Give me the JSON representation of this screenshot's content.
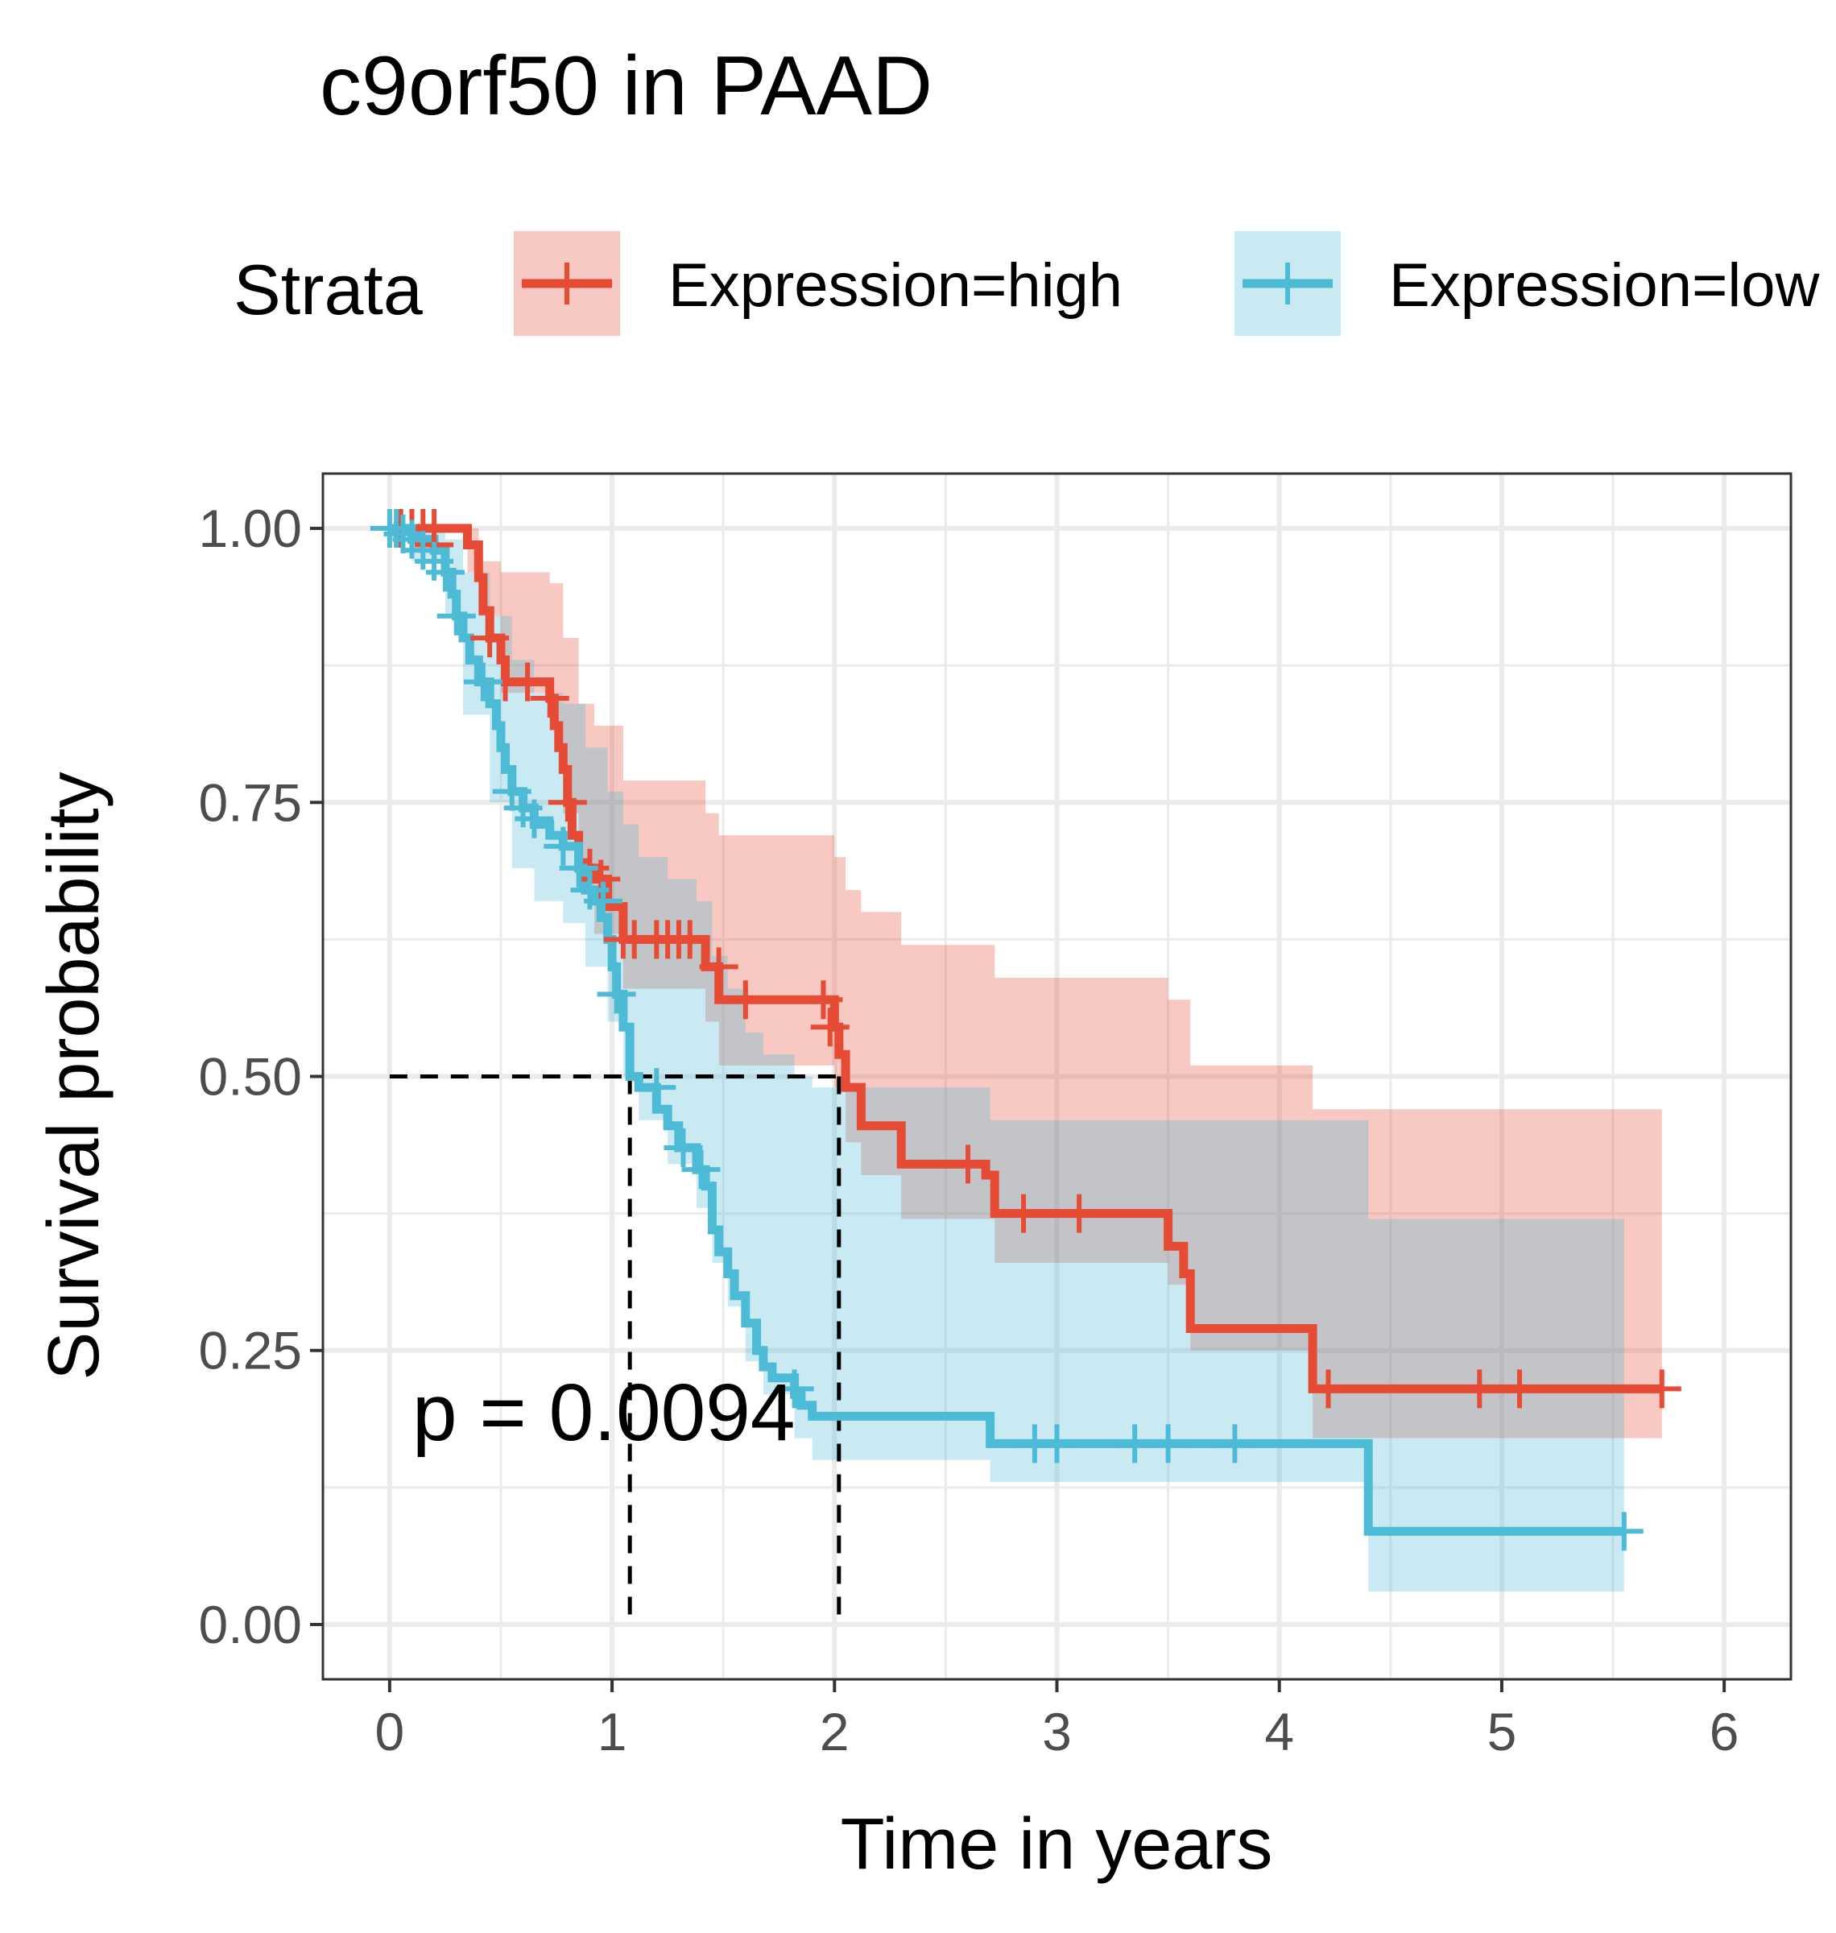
{
  "chart_data": {
    "type": "line",
    "title": "c9orf50 in PAAD",
    "xlabel": "Time in years",
    "ylabel": "Survival probability",
    "xlim": [
      -0.3,
      6.3
    ],
    "ylim": [
      -0.05,
      1.05
    ],
    "x_ticks": [
      "0",
      "1",
      "2",
      "3",
      "4",
      "5",
      "6"
    ],
    "y_ticks": [
      "0.00",
      "0.25",
      "0.50",
      "0.75",
      "1.00"
    ],
    "grid": true,
    "legend_title": "Strata",
    "legend_placement": "top",
    "annotation": "p = 0.0094",
    "median_lines": {
      "y": 0.5,
      "x": [
        1.08,
        2.02
      ]
    },
    "series": [
      {
        "name": "Expression=high",
        "color": "#E64B35",
        "steps": [
          [
            0,
            1.0
          ],
          [
            0.35,
            0.985
          ],
          [
            0.4,
            0.955
          ],
          [
            0.42,
            0.925
          ],
          [
            0.45,
            0.9
          ],
          [
            0.5,
            0.88
          ],
          [
            0.52,
            0.86
          ],
          [
            0.72,
            0.845
          ],
          [
            0.74,
            0.82
          ],
          [
            0.76,
            0.8
          ],
          [
            0.78,
            0.78
          ],
          [
            0.8,
            0.75
          ],
          [
            0.82,
            0.72
          ],
          [
            0.85,
            0.695
          ],
          [
            0.88,
            0.69
          ],
          [
            0.92,
            0.68
          ],
          [
            0.98,
            0.655
          ],
          [
            1.05,
            0.625
          ],
          [
            1.42,
            0.6
          ],
          [
            1.48,
            0.57
          ],
          [
            2.0,
            0.545
          ],
          [
            2.02,
            0.52
          ],
          [
            2.05,
            0.49
          ],
          [
            2.12,
            0.455
          ],
          [
            2.3,
            0.42
          ],
          [
            2.68,
            0.41
          ],
          [
            2.72,
            0.375
          ],
          [
            3.5,
            0.345
          ],
          [
            3.57,
            0.32
          ],
          [
            3.6,
            0.27
          ],
          [
            4.15,
            0.215
          ],
          [
            5.72,
            0.215
          ]
        ],
        "ci": [
          [
            0,
            1.0,
            1.0
          ],
          [
            0.35,
            1.0,
            0.96
          ],
          [
            0.4,
            0.97,
            0.92
          ],
          [
            0.5,
            0.96,
            0.85
          ],
          [
            0.72,
            0.95,
            0.82
          ],
          [
            0.78,
            0.9,
            0.74
          ],
          [
            0.85,
            0.84,
            0.67
          ],
          [
            0.92,
            0.82,
            0.63
          ],
          [
            1.05,
            0.77,
            0.58
          ],
          [
            1.42,
            0.74,
            0.55
          ],
          [
            1.48,
            0.72,
            0.51
          ],
          [
            2.0,
            0.7,
            0.49
          ],
          [
            2.05,
            0.67,
            0.44
          ],
          [
            2.12,
            0.65,
            0.41
          ],
          [
            2.3,
            0.62,
            0.37
          ],
          [
            2.72,
            0.59,
            0.33
          ],
          [
            3.5,
            0.57,
            0.31
          ],
          [
            3.6,
            0.51,
            0.25
          ],
          [
            4.15,
            0.47,
            0.17
          ],
          [
            5.72,
            0.47,
            0.1
          ]
        ],
        "censor": [
          [
            0.05,
            1.0
          ],
          [
            0.1,
            1.0
          ],
          [
            0.15,
            1.0
          ],
          [
            0.2,
            1.0
          ],
          [
            0.2,
            0.985
          ],
          [
            0.45,
            0.9
          ],
          [
            0.52,
            0.86
          ],
          [
            0.62,
            0.86
          ],
          [
            0.72,
            0.845
          ],
          [
            0.8,
            0.75
          ],
          [
            0.9,
            0.69
          ],
          [
            0.95,
            0.68
          ],
          [
            1.05,
            0.625
          ],
          [
            1.1,
            0.625
          ],
          [
            1.2,
            0.625
          ],
          [
            1.25,
            0.625
          ],
          [
            1.3,
            0.625
          ],
          [
            1.35,
            0.625
          ],
          [
            1.48,
            0.6
          ],
          [
            1.6,
            0.57
          ],
          [
            1.95,
            0.57
          ],
          [
            1.98,
            0.545
          ],
          [
            2.6,
            0.42
          ],
          [
            2.85,
            0.375
          ],
          [
            3.1,
            0.375
          ],
          [
            4.22,
            0.215
          ],
          [
            4.9,
            0.215
          ],
          [
            5.08,
            0.215
          ],
          [
            5.72,
            0.215
          ]
        ]
      },
      {
        "name": "Expression=low",
        "color": "#4DBBD5",
        "steps": [
          [
            0,
            1.0
          ],
          [
            0.1,
            0.99
          ],
          [
            0.2,
            0.98
          ],
          [
            0.25,
            0.96
          ],
          [
            0.28,
            0.94
          ],
          [
            0.3,
            0.92
          ],
          [
            0.33,
            0.9
          ],
          [
            0.36,
            0.88
          ],
          [
            0.4,
            0.86
          ],
          [
            0.45,
            0.84
          ],
          [
            0.48,
            0.82
          ],
          [
            0.5,
            0.8
          ],
          [
            0.52,
            0.78
          ],
          [
            0.55,
            0.76
          ],
          [
            0.6,
            0.745
          ],
          [
            0.65,
            0.73
          ],
          [
            0.72,
            0.72
          ],
          [
            0.78,
            0.71
          ],
          [
            0.85,
            0.69
          ],
          [
            0.88,
            0.67
          ],
          [
            0.92,
            0.66
          ],
          [
            0.95,
            0.645
          ],
          [
            0.98,
            0.625
          ],
          [
            1.0,
            0.6
          ],
          [
            1.02,
            0.575
          ],
          [
            1.05,
            0.545
          ],
          [
            1.08,
            0.5
          ],
          [
            1.12,
            0.49
          ],
          [
            1.2,
            0.47
          ],
          [
            1.25,
            0.455
          ],
          [
            1.3,
            0.435
          ],
          [
            1.38,
            0.415
          ],
          [
            1.42,
            0.4
          ],
          [
            1.45,
            0.36
          ],
          [
            1.48,
            0.34
          ],
          [
            1.52,
            0.32
          ],
          [
            1.55,
            0.3
          ],
          [
            1.6,
            0.275
          ],
          [
            1.65,
            0.25
          ],
          [
            1.68,
            0.235
          ],
          [
            1.72,
            0.225
          ],
          [
            1.82,
            0.21
          ],
          [
            1.85,
            0.2
          ],
          [
            1.9,
            0.19
          ],
          [
            2.7,
            0.165
          ],
          [
            4.4,
            0.085
          ],
          [
            5.55,
            0.085
          ]
        ],
        "ci": [
          [
            0,
            1.0,
            1.0
          ],
          [
            0.1,
            1.0,
            0.97
          ],
          [
            0.25,
            0.99,
            0.92
          ],
          [
            0.33,
            0.96,
            0.83
          ],
          [
            0.45,
            0.92,
            0.75
          ],
          [
            0.55,
            0.88,
            0.69
          ],
          [
            0.65,
            0.85,
            0.66
          ],
          [
            0.78,
            0.84,
            0.64
          ],
          [
            0.88,
            0.8,
            0.6
          ],
          [
            0.98,
            0.76,
            0.55
          ],
          [
            1.05,
            0.73,
            0.5
          ],
          [
            1.12,
            0.7,
            0.46
          ],
          [
            1.25,
            0.68,
            0.42
          ],
          [
            1.38,
            0.66,
            0.38
          ],
          [
            1.45,
            0.61,
            0.33
          ],
          [
            1.52,
            0.58,
            0.29
          ],
          [
            1.6,
            0.54,
            0.24
          ],
          [
            1.68,
            0.52,
            0.21
          ],
          [
            1.82,
            0.5,
            0.17
          ],
          [
            1.9,
            0.49,
            0.15
          ],
          [
            2.7,
            0.46,
            0.13
          ],
          [
            4.4,
            0.37,
            0.03
          ],
          [
            5.55,
            0.37,
            0.03
          ]
        ],
        "censor": [
          [
            0.0,
            1.0
          ],
          [
            0.03,
            1.0
          ],
          [
            0.06,
            0.995
          ],
          [
            0.1,
            0.99
          ],
          [
            0.15,
            0.98
          ],
          [
            0.2,
            0.97
          ],
          [
            0.25,
            0.96
          ],
          [
            0.3,
            0.92
          ],
          [
            0.42,
            0.86
          ],
          [
            0.55,
            0.76
          ],
          [
            0.6,
            0.745
          ],
          [
            0.65,
            0.735
          ],
          [
            0.78,
            0.71
          ],
          [
            0.85,
            0.69
          ],
          [
            0.9,
            0.67
          ],
          [
            0.96,
            0.66
          ],
          [
            1.02,
            0.575
          ],
          [
            1.2,
            0.49
          ],
          [
            1.32,
            0.435
          ],
          [
            1.4,
            0.415
          ],
          [
            1.82,
            0.215
          ],
          [
            2.9,
            0.165
          ],
          [
            3.0,
            0.165
          ],
          [
            3.35,
            0.165
          ],
          [
            3.5,
            0.165
          ],
          [
            3.8,
            0.165
          ],
          [
            5.55,
            0.085
          ]
        ]
      }
    ]
  }
}
